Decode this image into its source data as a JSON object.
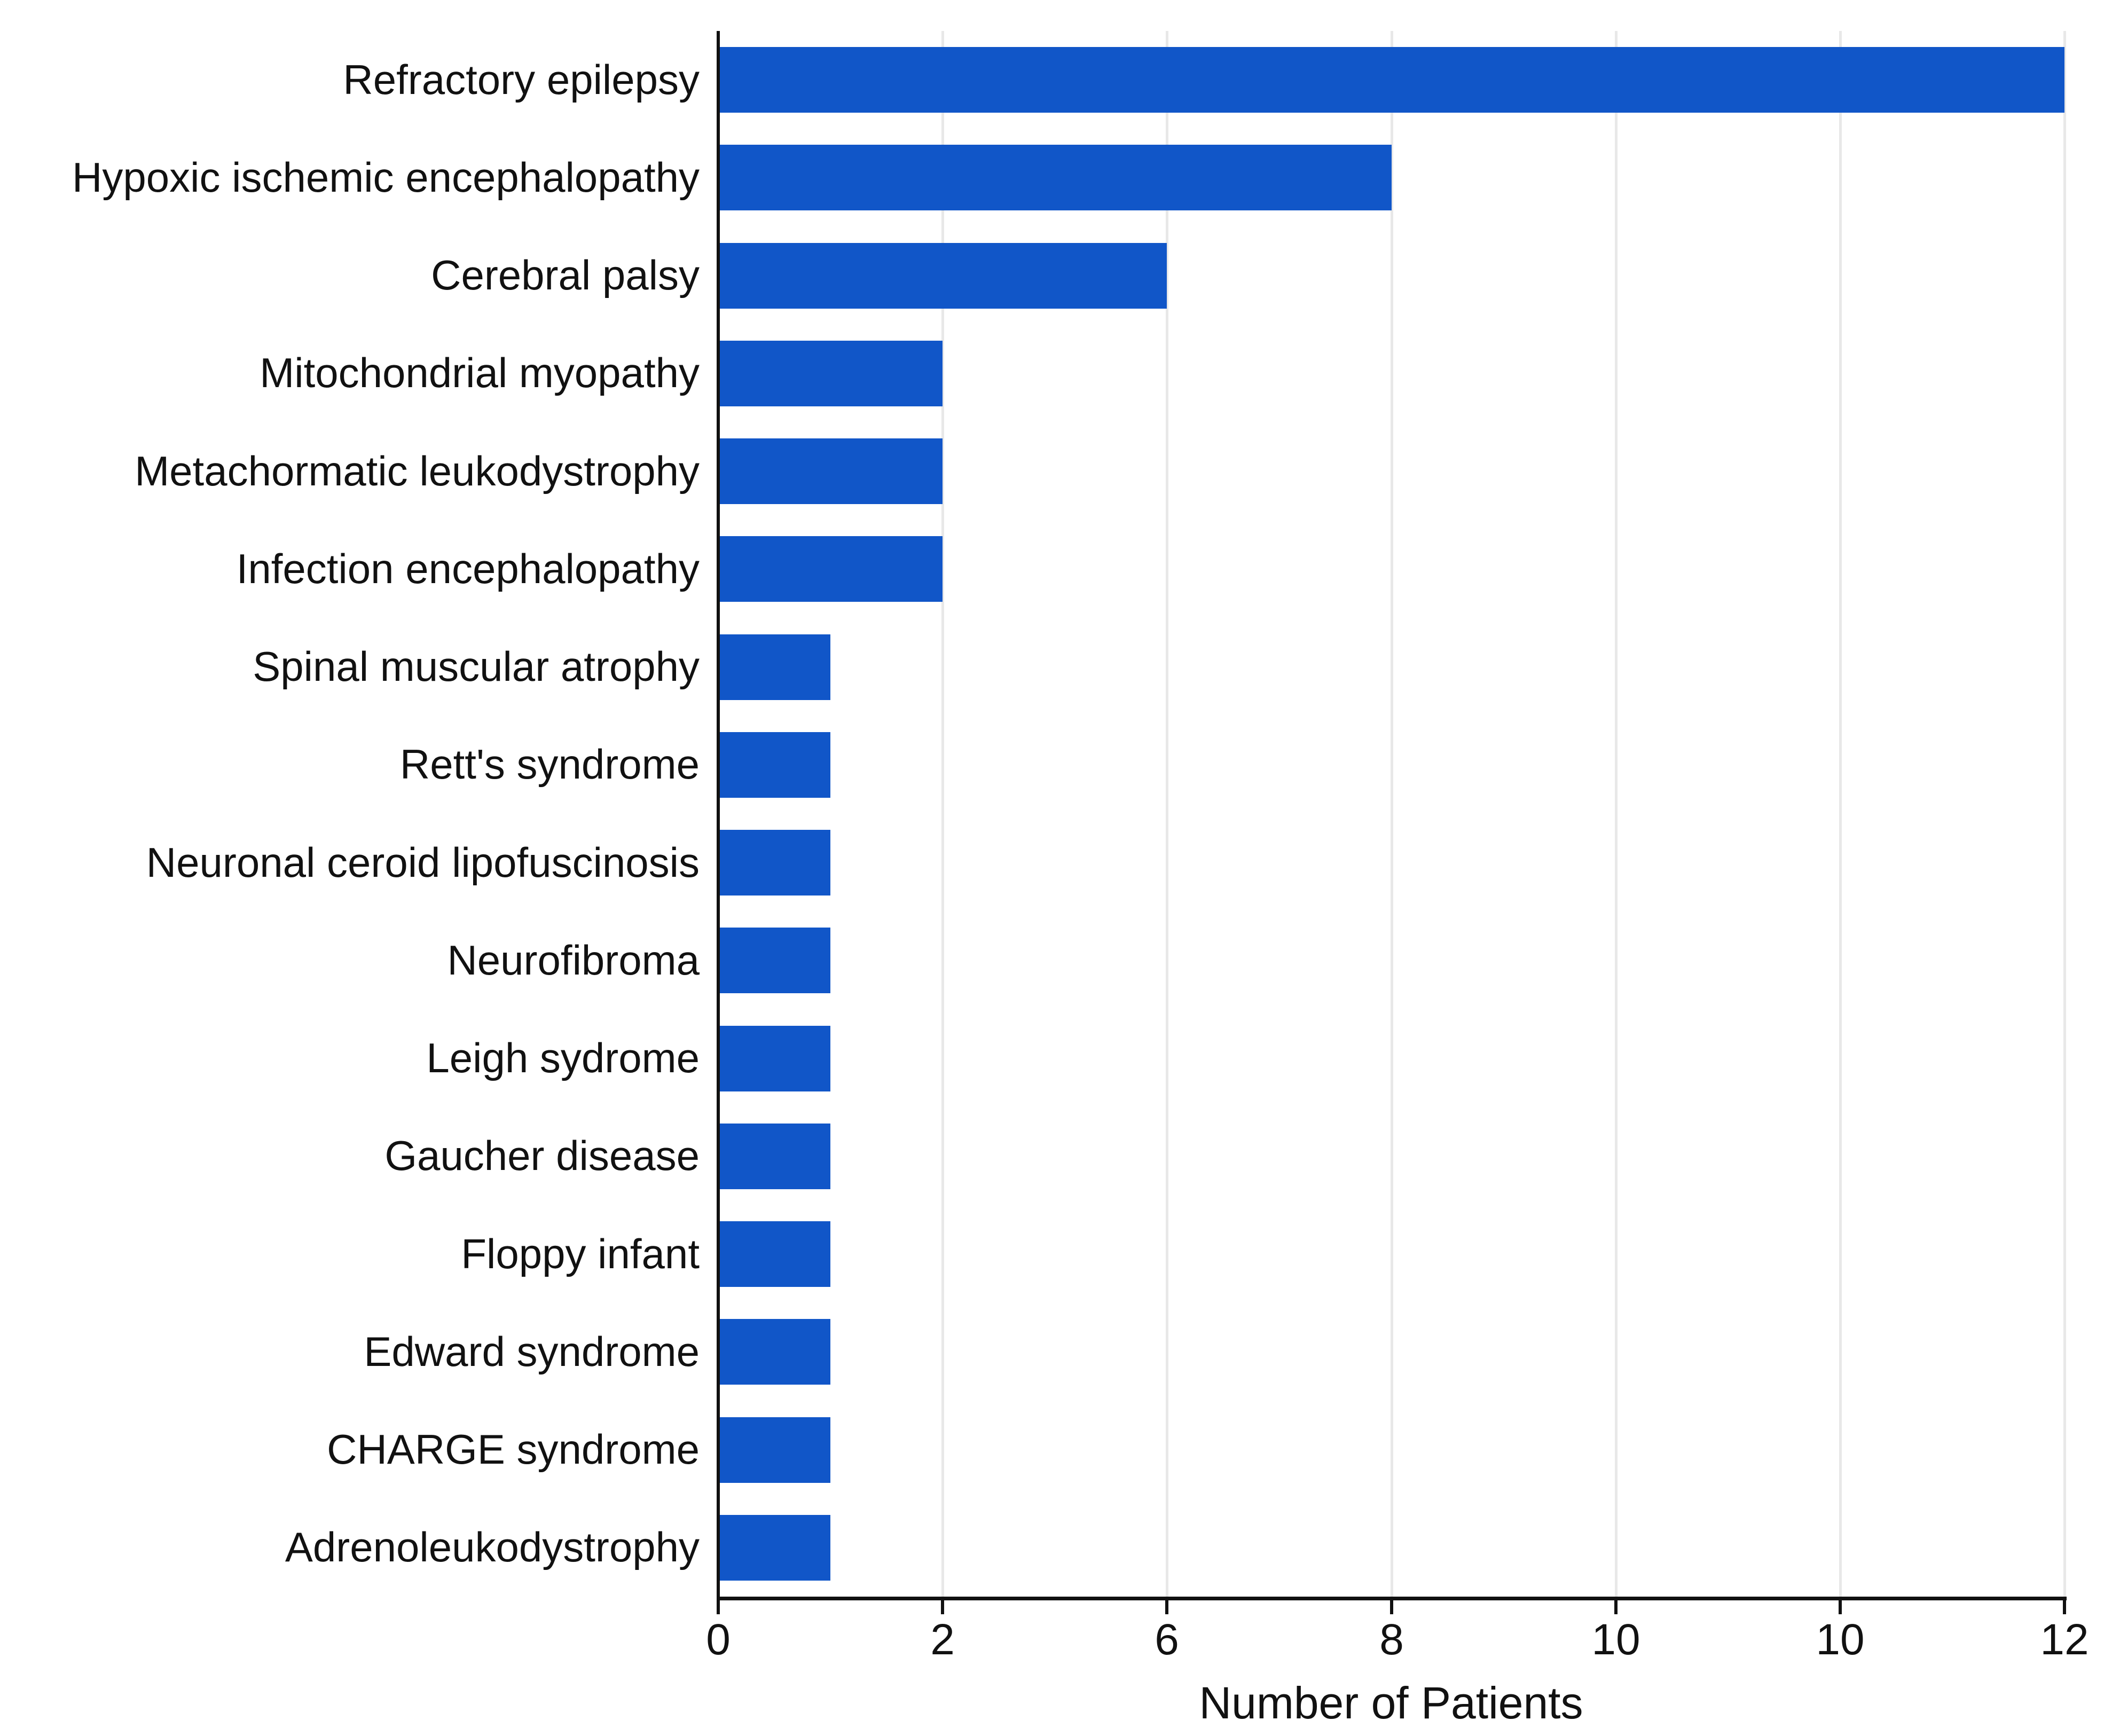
{
  "chart_data": {
    "type": "bar",
    "orientation": "horizontal",
    "title": "",
    "xlabel": "Number of Patients",
    "ylabel": "",
    "categories": [
      "Refractory epilepsy",
      "Hypoxic ischemic encephalopathy",
      "Cerebral palsy",
      "Mitochondrial myopathy",
      "Metachormatic leukodystrophy",
      "Infection encephalopathy",
      "Spinal muscular atrophy",
      "Rett's syndrome",
      "Neuronal ceroid lipofuscinosis",
      "Neurofibroma",
      "Leigh sydrome",
      "Gaucher disease",
      "Floppy infant",
      "Edward syndrome",
      "CHARGE syndrome",
      "Adrenoleukodystrophy"
    ],
    "values": [
      12,
      8,
      6,
      2,
      2,
      2,
      1,
      1,
      1,
      1,
      1,
      1,
      1,
      1,
      1,
      1
    ],
    "x_ticks": {
      "labels": [
        "0",
        "2",
        "6",
        "8",
        "10",
        "10",
        "12"
      ],
      "values": [
        0,
        2,
        6,
        8,
        10,
        10,
        12
      ],
      "evenly_spaced": true
    },
    "xlim": [
      0,
      12
    ],
    "grid": "vertical",
    "legend": "none",
    "bar_height_fraction": 0.67,
    "colors": {
      "bar": "#1156c8",
      "gridline": "#e8e8e8",
      "axis": "#111111",
      "text": "#111111",
      "background": "#ffffff"
    }
  }
}
